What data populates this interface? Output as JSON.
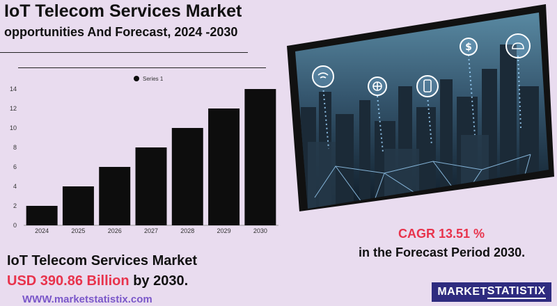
{
  "header": {
    "title": "IoT Telecom Services Market",
    "subtitle": "opportunities And Forecast, 2024 -2030"
  },
  "summary": {
    "market_name": "IoT Telecom Services Market",
    "value": "USD 390.86 Billion",
    "value_suffix": "by 2030.",
    "cagr": "CAGR 13.51 %",
    "period": "in the  Forecast Period  2030.",
    "url": "WWW.marketstatistix.com"
  },
  "logo": {
    "part1": "MARKET",
    "part2": "STATISTIX"
  },
  "colors": {
    "background": "#e9dcef",
    "accent_red": "#e8334c",
    "logo_bg": "#2e2b7f",
    "url": "#7a57c9",
    "bar": "#0d0d0d"
  },
  "chart_data": {
    "type": "bar",
    "categories": [
      "2024",
      "2025",
      "2026",
      "2027",
      "2028",
      "2029",
      "2030"
    ],
    "series": [
      {
        "name": "Series 1",
        "values": [
          2,
          4,
          6,
          8,
          10,
          12,
          14
        ]
      }
    ],
    "ylim": [
      0,
      14
    ],
    "yticks": [
      0,
      2,
      4,
      6,
      8,
      10,
      12,
      14
    ],
    "legend": "top-center",
    "grid": false
  }
}
